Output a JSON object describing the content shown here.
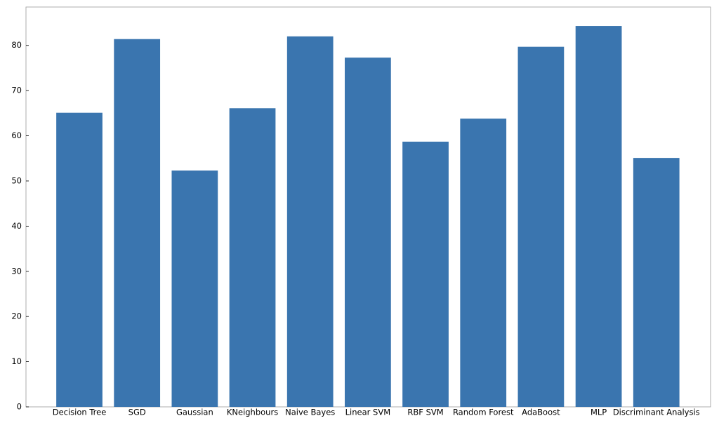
{
  "chart_data": {
    "type": "bar",
    "categories": [
      "Decision Tree",
      "SGD",
      "Gaussian",
      "KNeighbours",
      "Naive Bayes",
      "Linear SVM",
      "RBF SVM",
      "Random Forest",
      "AdaBoost",
      "MLP",
      "Discriminant Analysis"
    ],
    "values": [
      65.1,
      81.4,
      52.3,
      66.1,
      82.0,
      77.3,
      58.7,
      63.8,
      79.7,
      84.3,
      55.1
    ],
    "color": "#3a75af",
    "ylim": [
      0,
      88.5
    ],
    "yticks": [
      0,
      10,
      20,
      30,
      40,
      50,
      60,
      70,
      80
    ],
    "grid": false
  }
}
